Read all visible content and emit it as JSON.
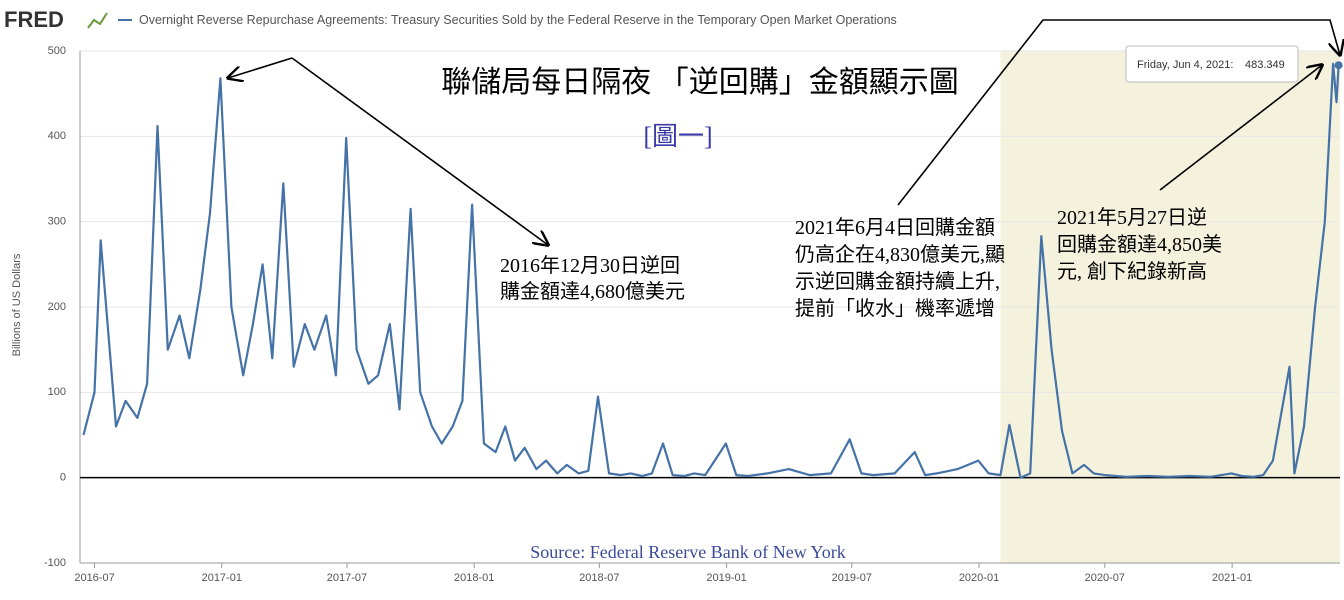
{
  "header": {
    "logo": "FRED",
    "series_title": "Overnight Reverse Repurchase Agreements: Treasury Securities Sold by the Federal Reserve in the Temporary Open Market Operations"
  },
  "chart_data": {
    "type": "line",
    "title": "聯儲局每日隔夜 「逆回購」金額顯示圖",
    "subtitle": "[圖一]",
    "source": "Source: Federal Reserve Bank of New York",
    "ylabel": "Billions of US Dollars",
    "x": [
      "2016-06-15",
      "2016-07-01",
      "2016-07-10",
      "2016-08-01",
      "2016-08-15",
      "2016-09-01",
      "2016-09-15",
      "2016-09-30",
      "2016-10-15",
      "2016-11-01",
      "2016-11-15",
      "2016-12-01",
      "2016-12-15",
      "2016-12-30",
      "2017-01-15",
      "2017-02-01",
      "2017-02-15",
      "2017-03-01",
      "2017-03-15",
      "2017-03-31",
      "2017-04-15",
      "2017-05-01",
      "2017-05-15",
      "2017-06-01",
      "2017-06-15",
      "2017-06-30",
      "2017-07-15",
      "2017-08-01",
      "2017-08-15",
      "2017-09-01",
      "2017-09-15",
      "2017-10-01",
      "2017-10-15",
      "2017-11-01",
      "2017-11-15",
      "2017-12-01",
      "2017-12-15",
      "2017-12-29",
      "2018-01-15",
      "2018-02-01",
      "2018-02-15",
      "2018-03-01",
      "2018-03-15",
      "2018-04-01",
      "2018-04-15",
      "2018-05-01",
      "2018-05-15",
      "2018-06-01",
      "2018-06-15",
      "2018-06-29",
      "2018-07-15",
      "2018-08-01",
      "2018-08-15",
      "2018-09-01",
      "2018-09-15",
      "2018-10-01",
      "2018-10-15",
      "2018-11-01",
      "2018-11-15",
      "2018-12-01",
      "2018-12-31",
      "2019-01-15",
      "2019-02-01",
      "2019-03-01",
      "2019-04-01",
      "2019-05-01",
      "2019-06-01",
      "2019-06-28",
      "2019-07-15",
      "2019-08-01",
      "2019-09-01",
      "2019-09-30",
      "2019-10-15",
      "2019-11-01",
      "2019-12-01",
      "2019-12-31",
      "2020-01-15",
      "2020-02-01",
      "2020-02-14",
      "2020-03-01",
      "2020-03-15",
      "2020-03-31",
      "2020-04-15",
      "2020-04-30",
      "2020-05-15",
      "2020-06-01",
      "2020-06-15",
      "2020-07-01",
      "2020-08-01",
      "2020-09-01",
      "2020-10-01",
      "2020-11-01",
      "2020-12-01",
      "2020-12-31",
      "2021-01-15",
      "2021-02-01",
      "2021-02-15",
      "2021-03-01",
      "2021-03-25",
      "2021-04-01",
      "2021-04-15",
      "2021-05-01",
      "2021-05-15",
      "2021-05-27",
      "2021-06-01",
      "2021-06-04"
    ],
    "series": [
      {
        "name": "Overnight Reverse Repurchase Agreements",
        "color": "#4572a7",
        "values": [
          50,
          100,
          278,
          60,
          90,
          70,
          110,
          412,
          150,
          190,
          140,
          220,
          310,
          468,
          200,
          120,
          180,
          250,
          140,
          345,
          130,
          180,
          150,
          190,
          120,
          398,
          150,
          110,
          120,
          180,
          80,
          315,
          100,
          60,
          40,
          60,
          90,
          320,
          40,
          30,
          60,
          20,
          35,
          10,
          20,
          5,
          15,
          5,
          8,
          95,
          5,
          3,
          5,
          2,
          5,
          40,
          3,
          2,
          5,
          3,
          40,
          3,
          2,
          5,
          10,
          3,
          5,
          45,
          5,
          3,
          5,
          30,
          3,
          5,
          10,
          20,
          5,
          3,
          62,
          0,
          5,
          283,
          150,
          55,
          5,
          15,
          5,
          3,
          1,
          2,
          1,
          2,
          1,
          5,
          2,
          1,
          3,
          20,
          130,
          5,
          60,
          200,
          300,
          485,
          440,
          483.349
        ]
      }
    ],
    "xlim": [
      "2016-06-10",
      "2021-06-06"
    ],
    "xticks": [
      "2016-07",
      "2017-01",
      "2017-07",
      "2018-01",
      "2018-07",
      "2019-01",
      "2019-07",
      "2020-01",
      "2020-07",
      "2021-01"
    ],
    "ylim": [
      -100,
      500
    ],
    "yticks": [
      -100,
      0,
      100,
      200,
      300,
      400,
      500
    ],
    "grid": true,
    "shade": [
      "2020-02-01",
      "2021-06-06"
    ],
    "tooltip": {
      "label": "Friday, Jun 4, 2021:"
    },
    "annotations": [
      {
        "lines": [
          "2016年12月30日逆回",
          "購金額達4,680億美元"
        ]
      },
      {
        "lines": [
          "2021年6月4日回購金額",
          "仍高企在4,830億美元,顯",
          "示逆回購金額持續上升,",
          "提前「收水」機率遞增"
        ]
      },
      {
        "lines": [
          "2021年5月27日逆",
          "回購金額達4,850美",
          "元, 創下紀錄新高"
        ]
      }
    ]
  }
}
